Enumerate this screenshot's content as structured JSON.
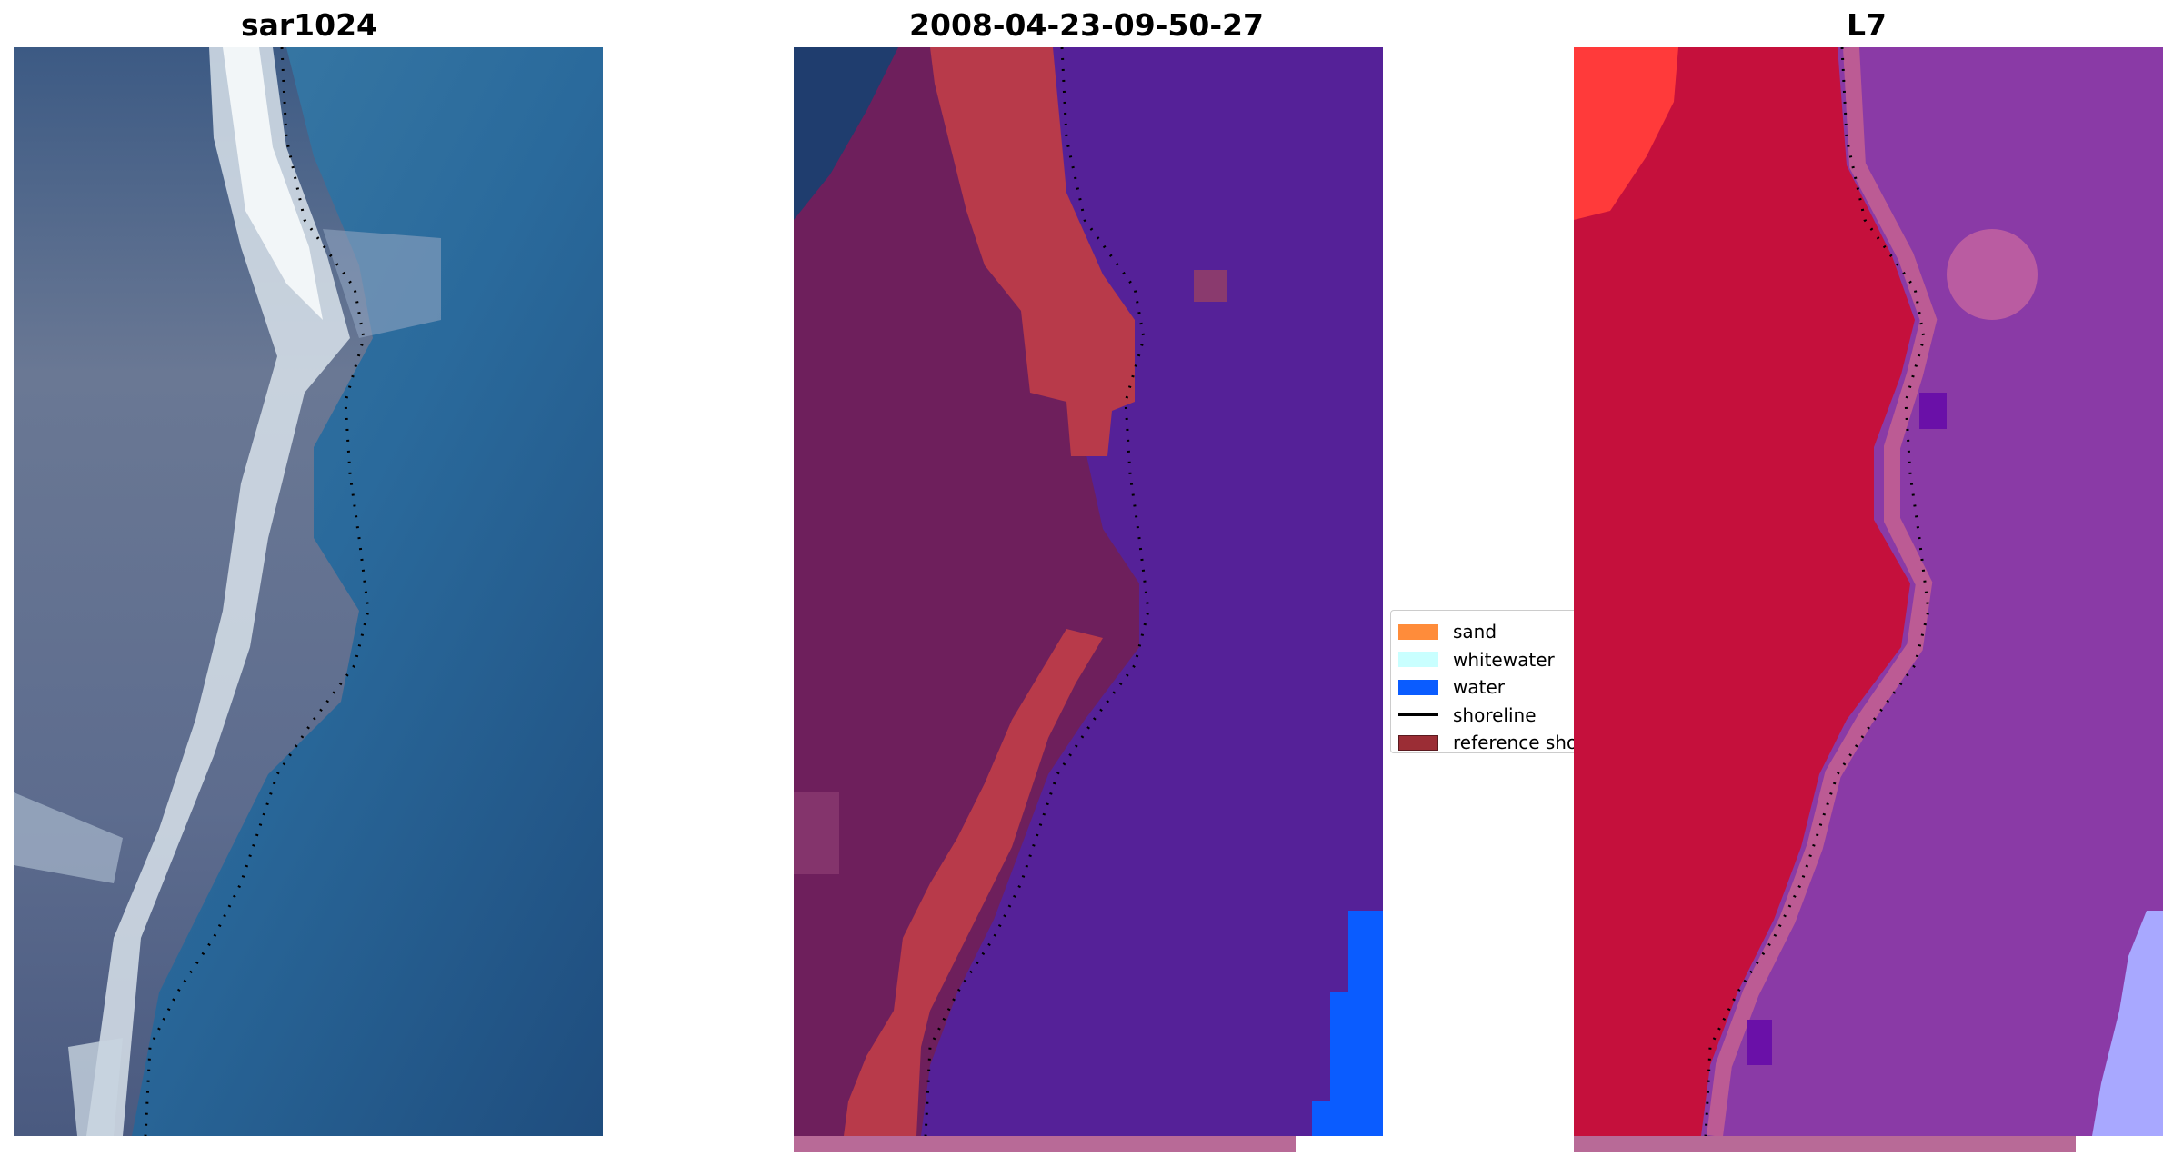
{
  "panels": [
    {
      "title": "sar1024"
    },
    {
      "title": "2008-04-23-09-50-27"
    },
    {
      "title": "L7"
    }
  ],
  "legend": {
    "items": [
      {
        "label": "sand",
        "color": "#ff8c3a"
      },
      {
        "label": "whitewater",
        "color": "#c9ffff"
      },
      {
        "label": "water",
        "color": "#0a5cff"
      },
      {
        "label": "shoreline",
        "color": "#000000"
      },
      {
        "label": "reference shoreline",
        "color": "#9b2d35"
      }
    ]
  },
  "colors": {
    "sar_water": "#2a6a9c",
    "sar_land": "#6a7894",
    "classified_land": "#6e1f5c",
    "classified_sand": "#b83a4a",
    "classified_water": "#552198",
    "classified_water_bright": "#0a5cff",
    "ndwi_land": "#c5103c",
    "ndwi_water": "#8a3aa6"
  }
}
